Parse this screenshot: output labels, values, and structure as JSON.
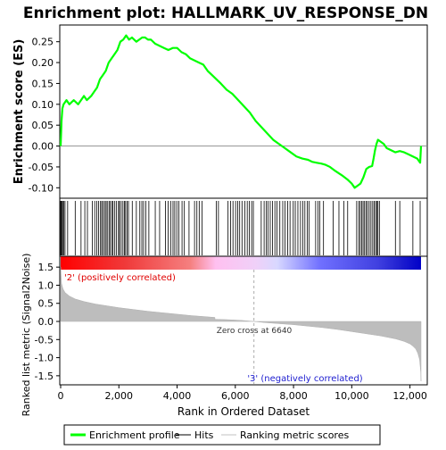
{
  "chart_data": {
    "type": "line",
    "title": "Enrichment plot: HALLMARK_UV_RESPONSE_DN",
    "xlabel": "Rank in Ordered Dataset",
    "ylabel_top": "Enrichment score (ES)",
    "ylabel_bottom": "Ranked list metric (Signal2Noise)",
    "x_ticks": [
      "0",
      "2,000",
      "4,000",
      "6,000",
      "8,000",
      "10,000",
      "12,000"
    ],
    "x_tick_values": [
      0,
      2000,
      4000,
      6000,
      8000,
      10000,
      12000
    ],
    "xlim": [
      0,
      12500
    ],
    "top_y_ticks": [
      "-0.10",
      "-0.05",
      "0.00",
      "0.05",
      "0.10",
      "0.15",
      "0.20",
      "0.25"
    ],
    "top_y_tick_values": [
      -0.1,
      -0.05,
      0.0,
      0.05,
      0.1,
      0.15,
      0.2,
      0.25
    ],
    "top_ylim": [
      -0.125,
      0.29
    ],
    "bottom_y_ticks": [
      "-1.5",
      "-1.0",
      "-0.5",
      "0.0",
      "0.5",
      "1.0",
      "1.5"
    ],
    "bottom_y_tick_values": [
      -1.5,
      -1.0,
      -0.5,
      0.0,
      0.5,
      1.0,
      1.5
    ],
    "bottom_ylim": [
      -1.75,
      1.8
    ],
    "zero_cross_label": "Zero cross at 6640",
    "zero_cross": 6640,
    "positive_label": "'2' (positively correlated)",
    "negative_label": "'3' (negatively correlated)",
    "series": [
      {
        "name": "Enrichment profile",
        "color": "#00ff00",
        "x": [
          0,
          30,
          60,
          100,
          200,
          300,
          450,
          600,
          800,
          900,
          1050,
          1150,
          1250,
          1350,
          1450,
          1550,
          1650,
          1750,
          1850,
          1950,
          2050,
          2150,
          2250,
          2350,
          2450,
          2600,
          2700,
          2800,
          2900,
          3000,
          3100,
          3250,
          3400,
          3550,
          3700,
          3850,
          4000,
          4150,
          4300,
          4450,
          4600,
          4750,
          4900,
          5050,
          5200,
          5350,
          5500,
          5700,
          5900,
          6100,
          6300,
          6500,
          6700,
          6900,
          7100,
          7300,
          7500,
          7700,
          7900,
          8100,
          8300,
          8500,
          8650,
          8800,
          8950,
          9100,
          9250,
          9400,
          9550,
          9700,
          9850,
          10000,
          10100,
          10200,
          10300,
          10400,
          10500,
          10600,
          10700,
          10750,
          10800,
          10850,
          10900,
          11000,
          11100,
          11200,
          11350,
          11500,
          11650,
          11800,
          11950,
          12100,
          12250,
          12350,
          12380
        ],
        "values": [
          0.0,
          0.06,
          0.09,
          0.1,
          0.11,
          0.1,
          0.11,
          0.1,
          0.12,
          0.11,
          0.12,
          0.13,
          0.14,
          0.16,
          0.17,
          0.18,
          0.2,
          0.21,
          0.22,
          0.23,
          0.25,
          0.255,
          0.265,
          0.255,
          0.26,
          0.25,
          0.255,
          0.26,
          0.26,
          0.255,
          0.255,
          0.245,
          0.24,
          0.235,
          0.23,
          0.235,
          0.235,
          0.225,
          0.22,
          0.21,
          0.205,
          0.2,
          0.195,
          0.18,
          0.17,
          0.16,
          0.15,
          0.135,
          0.125,
          0.11,
          0.095,
          0.08,
          0.06,
          0.045,
          0.03,
          0.015,
          0.005,
          -0.005,
          -0.015,
          -0.025,
          -0.03,
          -0.033,
          -0.038,
          -0.04,
          -0.042,
          -0.045,
          -0.05,
          -0.058,
          -0.065,
          -0.072,
          -0.08,
          -0.09,
          -0.1,
          -0.095,
          -0.09,
          -0.075,
          -0.055,
          -0.05,
          -0.048,
          -0.03,
          -0.01,
          0.005,
          0.015,
          0.01,
          0.005,
          -0.005,
          -0.01,
          -0.015,
          -0.012,
          -0.015,
          -0.02,
          -0.025,
          -0.03,
          -0.04,
          0.0
        ]
      }
    ],
    "hits": [
      0,
      20,
      40,
      70,
      110,
      150,
      240,
      500,
      700,
      830,
      920,
      1090,
      1170,
      1240,
      1300,
      1370,
      1410,
      1460,
      1510,
      1560,
      1600,
      1660,
      1700,
      1760,
      1800,
      1860,
      1920,
      1990,
      2020,
      2080,
      2140,
      2190,
      2230,
      2280,
      2330,
      2460,
      2600,
      2720,
      2790,
      2850,
      2930,
      3030,
      3250,
      3400,
      3600,
      3690,
      3780,
      3860,
      3920,
      3990,
      4060,
      4170,
      4250,
      4410,
      4600,
      4680,
      4760,
      4860,
      5350,
      5420,
      5750,
      5840,
      5920,
      6010,
      6080,
      6150,
      6230,
      6330,
      6410,
      6480,
      6560,
      6620,
      6890,
      6990,
      7060,
      7120,
      7200,
      7280,
      7360,
      7430,
      7530,
      7630,
      7710,
      7800,
      7880,
      7990,
      8060,
      8150,
      8240,
      8320,
      8390,
      8470,
      8530,
      8760,
      8840,
      8900,
      9030,
      9360,
      9560,
      9730,
      9860,
      10170,
      10240,
      10290,
      10340,
      10390,
      10440,
      10490,
      10540,
      10600,
      10660,
      10720,
      10770,
      10820,
      10860,
      10900,
      10950,
      11500,
      11650,
      12100,
      12350
    ],
    "metric_knots": {
      "x": [
        0,
        30,
        80,
        150,
        300,
        500,
        800,
        1200,
        1600,
        2000,
        2500,
        3000,
        3500,
        4000,
        4500,
        5000,
        5300,
        5301,
        5700,
        6200,
        6640,
        7000,
        7500,
        8000,
        8500,
        9000,
        9500,
        10000,
        10500,
        11000,
        11500,
        11800,
        12000,
        12100,
        12200,
        12270,
        12330,
        12370,
        12380
      ],
      "y": [
        1.5,
        1.05,
        0.9,
        0.8,
        0.7,
        0.62,
        0.55,
        0.48,
        0.43,
        0.38,
        0.33,
        0.28,
        0.24,
        0.2,
        0.16,
        0.13,
        0.11,
        0.06,
        0.05,
        0.03,
        0.0,
        -0.03,
        -0.06,
        -0.09,
        -0.13,
        -0.17,
        -0.22,
        -0.28,
        -0.34,
        -0.4,
        -0.48,
        -0.55,
        -0.62,
        -0.68,
        -0.76,
        -0.88,
        -1.05,
        -1.4,
        -1.65
      ]
    }
  }
}
